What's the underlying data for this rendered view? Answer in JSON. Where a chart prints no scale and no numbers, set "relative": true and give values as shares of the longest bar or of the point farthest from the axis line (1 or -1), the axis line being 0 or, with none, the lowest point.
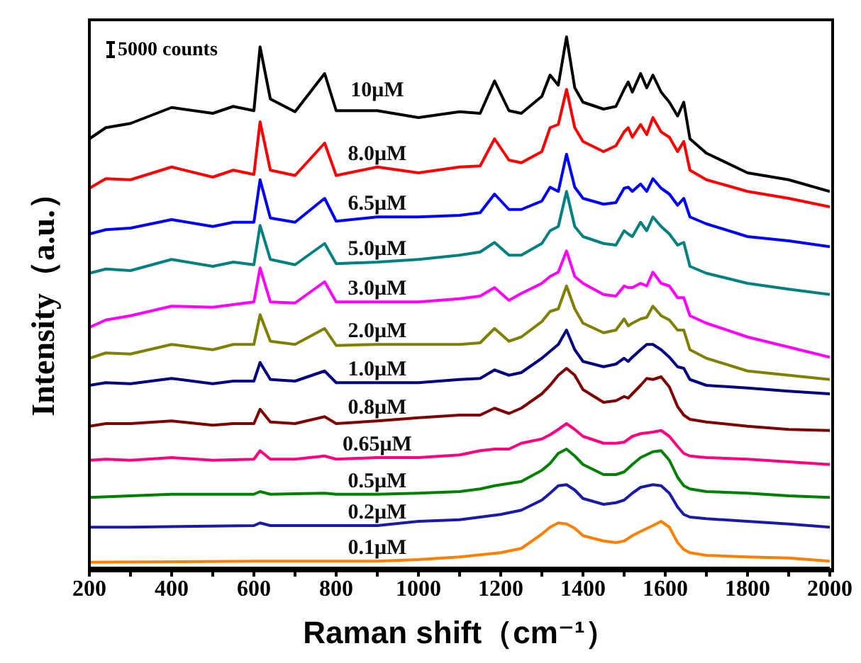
{
  "chart_data": {
    "type": "line",
    "relative": true,
    "xlabel": "Raman shift（cm⁻¹）",
    "ylabel": "Intensity（a.u.）",
    "annotations": [
      "5000 counts"
    ],
    "legend": false,
    "grid": false,
    "marker": "none",
    "line_style": "solid",
    "xlim": [
      200,
      2000
    ],
    "xticks": [
      200,
      {
        "value": 300,
        "label": null
      },
      400,
      {
        "value": 500,
        "label": null
      },
      600,
      {
        "value": 700,
        "label": null
      },
      800,
      {
        "value": 900,
        "label": null
      },
      1000,
      {
        "value": 1100,
        "label": null
      },
      1200,
      {
        "value": 1300,
        "label": null
      },
      1400,
      {
        "value": 1500,
        "label": null
      },
      1600,
      {
        "value": 1700,
        "label": null
      },
      1800,
      {
        "value": 1900,
        "label": null
      },
      2000
    ],
    "x": [
      200,
      240,
      300,
      400,
      500,
      550,
      600,
      615,
      640,
      700,
      772,
      800,
      900,
      1000,
      1100,
      1150,
      1185,
      1220,
      1250,
      1300,
      1320,
      1340,
      1360,
      1380,
      1400,
      1450,
      1480,
      1500,
      1510,
      1520,
      1540,
      1555,
      1570,
      1590,
      1610,
      1630,
      1645,
      1660,
      1700,
      1800,
      1900,
      2000
    ],
    "series": [
      {
        "name": "10μM",
        "color": "#000000",
        "values": [
          0.808,
          0.829,
          0.837,
          0.867,
          0.856,
          0.869,
          0.861,
          0.981,
          0.883,
          0.859,
          0.931,
          0.861,
          0.861,
          0.848,
          0.859,
          0.856,
          0.917,
          0.861,
          0.856,
          0.888,
          0.928,
          0.909,
          1,
          0.904,
          0.877,
          0.864,
          0.869,
          0.901,
          0.915,
          0.896,
          0.931,
          0.904,
          0.928,
          0.896,
          0.877,
          0.851,
          0.877,
          0.808,
          0.781,
          0.744,
          0.731,
          0.709
        ]
      },
      {
        "name": "8.0μM",
        "color": "#ff0000",
        "values": [
          0.715,
          0.733,
          0.731,
          0.755,
          0.736,
          0.749,
          0.741,
          0.84,
          0.749,
          0.739,
          0.8,
          0.739,
          0.755,
          0.744,
          0.755,
          0.757,
          0.808,
          0.768,
          0.763,
          0.784,
          0.829,
          0.835,
          0.901,
          0.829,
          0.803,
          0.784,
          0.795,
          0.821,
          0.829,
          0.811,
          0.835,
          0.816,
          0.848,
          0.821,
          0.811,
          0.784,
          0.803,
          0.749,
          0.731,
          0.709,
          0.696,
          0.68
        ]
      },
      {
        "name": "6.5μM",
        "color": "#0000ff",
        "values": [
          0.629,
          0.637,
          0.64,
          0.656,
          0.643,
          0.651,
          0.651,
          0.731,
          0.659,
          0.651,
          0.696,
          0.653,
          0.661,
          0.661,
          0.664,
          0.669,
          0.704,
          0.675,
          0.675,
          0.691,
          0.717,
          0.709,
          0.779,
          0.717,
          0.696,
          0.685,
          0.688,
          0.715,
          0.717,
          0.709,
          0.723,
          0.709,
          0.733,
          0.715,
          0.704,
          0.683,
          0.696,
          0.661,
          0.648,
          0.624,
          0.616,
          0.605
        ]
      },
      {
        "name": "5.0μM",
        "color": "#008080",
        "values": [
          0.555,
          0.563,
          0.56,
          0.581,
          0.568,
          0.576,
          0.571,
          0.645,
          0.581,
          0.571,
          0.611,
          0.573,
          0.576,
          0.581,
          0.589,
          0.595,
          0.613,
          0.589,
          0.589,
          0.611,
          0.635,
          0.643,
          0.709,
          0.643,
          0.624,
          0.611,
          0.608,
          0.635,
          0.629,
          0.624,
          0.651,
          0.635,
          0.661,
          0.643,
          0.629,
          0.608,
          0.613,
          0.568,
          0.555,
          0.536,
          0.525,
          0.515
        ]
      },
      {
        "name": "3.0μM",
        "color": "#ff00ff",
        "values": [
          0.453,
          0.467,
          0.475,
          0.493,
          0.491,
          0.496,
          0.501,
          0.565,
          0.501,
          0.499,
          0.539,
          0.501,
          0.501,
          0.501,
          0.507,
          0.512,
          0.528,
          0.504,
          0.517,
          0.536,
          0.549,
          0.557,
          0.597,
          0.549,
          0.536,
          0.515,
          0.512,
          0.531,
          0.528,
          0.528,
          0.536,
          0.531,
          0.557,
          0.536,
          0.531,
          0.509,
          0.509,
          0.475,
          0.461,
          0.435,
          0.416,
          0.397
        ]
      },
      {
        "name": "2.0μM",
        "color": "#808000",
        "values": [
          0.395,
          0.405,
          0.403,
          0.421,
          0.411,
          0.421,
          0.421,
          0.477,
          0.427,
          0.421,
          0.451,
          0.419,
          0.421,
          0.421,
          0.421,
          0.424,
          0.451,
          0.427,
          0.435,
          0.464,
          0.483,
          0.488,
          0.531,
          0.488,
          0.461,
          0.443,
          0.448,
          0.469,
          0.456,
          0.461,
          0.469,
          0.472,
          0.493,
          0.475,
          0.467,
          0.448,
          0.448,
          0.411,
          0.395,
          0.371,
          0.363,
          0.355
        ]
      },
      {
        "name": "1.0μM",
        "color": "#000080",
        "values": [
          0.344,
          0.349,
          0.347,
          0.357,
          0.347,
          0.352,
          0.352,
          0.387,
          0.355,
          0.352,
          0.371,
          0.349,
          0.349,
          0.349,
          0.355,
          0.357,
          0.373,
          0.363,
          0.368,
          0.395,
          0.408,
          0.421,
          0.448,
          0.411,
          0.389,
          0.379,
          0.384,
          0.395,
          0.389,
          0.397,
          0.411,
          0.421,
          0.421,
          0.411,
          0.397,
          0.379,
          0.376,
          0.355,
          0.344,
          0.339,
          0.333,
          0.328
        ]
      },
      {
        "name": "0.8μM",
        "color": "#800000",
        "values": [
          0.267,
          0.272,
          0.272,
          0.277,
          0.269,
          0.272,
          0.272,
          0.299,
          0.275,
          0.272,
          0.285,
          0.272,
          0.277,
          0.283,
          0.288,
          0.288,
          0.301,
          0.291,
          0.301,
          0.328,
          0.344,
          0.363,
          0.376,
          0.363,
          0.336,
          0.312,
          0.315,
          0.323,
          0.32,
          0.328,
          0.344,
          0.357,
          0.355,
          0.36,
          0.341,
          0.304,
          0.288,
          0.28,
          0.275,
          0.267,
          0.261,
          0.259
        ]
      },
      {
        "name": "0.65μM",
        "color": "#ff0080",
        "x": [
          200,
          240,
          300,
          400,
          500,
          600,
          615,
          640,
          700,
          772,
          800,
          900,
          1000,
          1100,
          1150,
          1185,
          1220,
          1250,
          1300,
          1320,
          1340,
          1360,
          1380,
          1400,
          1450,
          1480,
          1500,
          1520,
          1540,
          1570,
          1590,
          1610,
          1630,
          1645,
          1660,
          1700,
          1800,
          1900,
          2000
        ],
        "values": [
          0.203,
          0.205,
          0.203,
          0.208,
          0.203,
          0.205,
          0.221,
          0.205,
          0.205,
          0.211,
          0.205,
          0.208,
          0.208,
          0.213,
          0.221,
          0.224,
          0.224,
          0.235,
          0.243,
          0.251,
          0.261,
          0.272,
          0.261,
          0.248,
          0.235,
          0.235,
          0.237,
          0.248,
          0.253,
          0.256,
          0.259,
          0.248,
          0.229,
          0.216,
          0.211,
          0.208,
          0.205,
          0.2,
          0.195
        ]
      },
      {
        "name": "0.5μM",
        "color": "#008000",
        "x": [
          200,
          300,
          400,
          600,
          615,
          640,
          772,
          800,
          900,
          1000,
          1100,
          1150,
          1185,
          1250,
          1300,
          1320,
          1340,
          1360,
          1380,
          1400,
          1450,
          1480,
          1500,
          1520,
          1540,
          1570,
          1590,
          1610,
          1630,
          1645,
          1660,
          1700,
          1800,
          1900,
          2000
        ],
        "values": [
          0.133,
          0.136,
          0.139,
          0.139,
          0.144,
          0.139,
          0.141,
          0.139,
          0.139,
          0.141,
          0.144,
          0.149,
          0.155,
          0.163,
          0.184,
          0.197,
          0.216,
          0.224,
          0.211,
          0.195,
          0.176,
          0.176,
          0.181,
          0.195,
          0.208,
          0.219,
          0.221,
          0.203,
          0.171,
          0.155,
          0.149,
          0.144,
          0.141,
          0.136,
          0.133
        ]
      },
      {
        "name": "0.2μM",
        "color": "#1a1aa6",
        "x": [
          200,
          300,
          600,
          615,
          640,
          800,
          900,
          1000,
          1100,
          1150,
          1200,
          1250,
          1300,
          1320,
          1340,
          1360,
          1380,
          1400,
          1450,
          1480,
          1500,
          1520,
          1540,
          1570,
          1590,
          1610,
          1630,
          1645,
          1660,
          1700,
          1800,
          1900,
          2000
        ],
        "values": [
          0.077,
          0.077,
          0.08,
          0.085,
          0.08,
          0.08,
          0.08,
          0.088,
          0.091,
          0.096,
          0.101,
          0.109,
          0.128,
          0.141,
          0.155,
          0.157,
          0.147,
          0.131,
          0.12,
          0.123,
          0.128,
          0.141,
          0.152,
          0.157,
          0.155,
          0.141,
          0.115,
          0.101,
          0.096,
          0.093,
          0.088,
          0.083,
          0.077
        ]
      },
      {
        "name": "0.1μM",
        "color": "#ff8000",
        "x": [
          200,
          600,
          800,
          900,
          1000,
          1100,
          1200,
          1250,
          1300,
          1320,
          1340,
          1360,
          1380,
          1400,
          1450,
          1480,
          1500,
          1520,
          1540,
          1570,
          1590,
          1610,
          1630,
          1645,
          1660,
          1700,
          1800,
          1900,
          2000
        ],
        "values": [
          0.011,
          0.013,
          0.013,
          0.013,
          0.016,
          0.021,
          0.029,
          0.037,
          0.064,
          0.077,
          0.085,
          0.083,
          0.075,
          0.061,
          0.051,
          0.048,
          0.051,
          0.061,
          0.069,
          0.08,
          0.088,
          0.077,
          0.048,
          0.035,
          0.029,
          0.024,
          0.021,
          0.019,
          0.013
        ]
      }
    ]
  }
}
